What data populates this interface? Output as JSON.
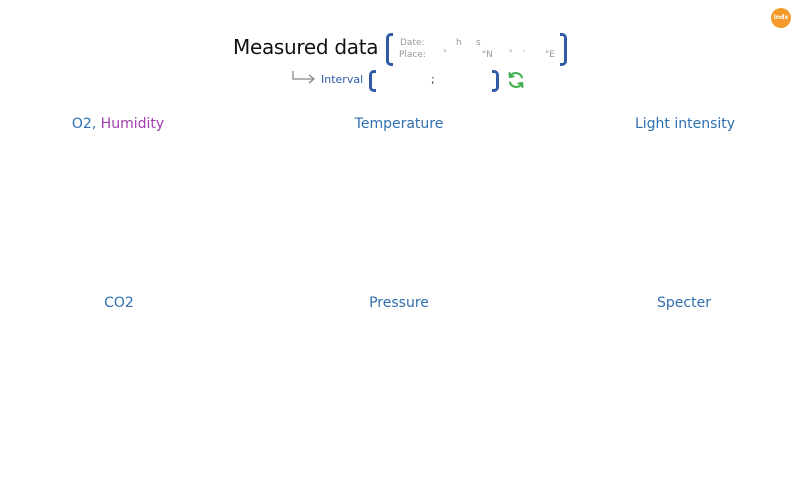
{
  "logo": {
    "text": "Indx"
  },
  "header": {
    "title": "Measured data",
    "date_label": "Date:",
    "date_h": "h",
    "date_s": "s",
    "place_label": "Place:",
    "place_deg1": "°",
    "place_N": "\"N",
    "place_deg2": "°",
    "place_min": "'",
    "place_E": "\"E"
  },
  "interval": {
    "label": "Interval",
    "separator": ";"
  },
  "panels": {
    "o2_label": "O2,",
    "humidity_label": "Humidity",
    "temperature": "Temperature",
    "light": "Light intensity",
    "co2": "CO2",
    "pressure": "Pressure",
    "specter": "Specter"
  },
  "colors": {
    "accent_blue": "#2e6fb0",
    "bracket_blue": "#2e5aa6",
    "humidity_purple": "#a23db0",
    "refresh_green": "#3cae4a",
    "logo_orange": "#f39a2b"
  }
}
